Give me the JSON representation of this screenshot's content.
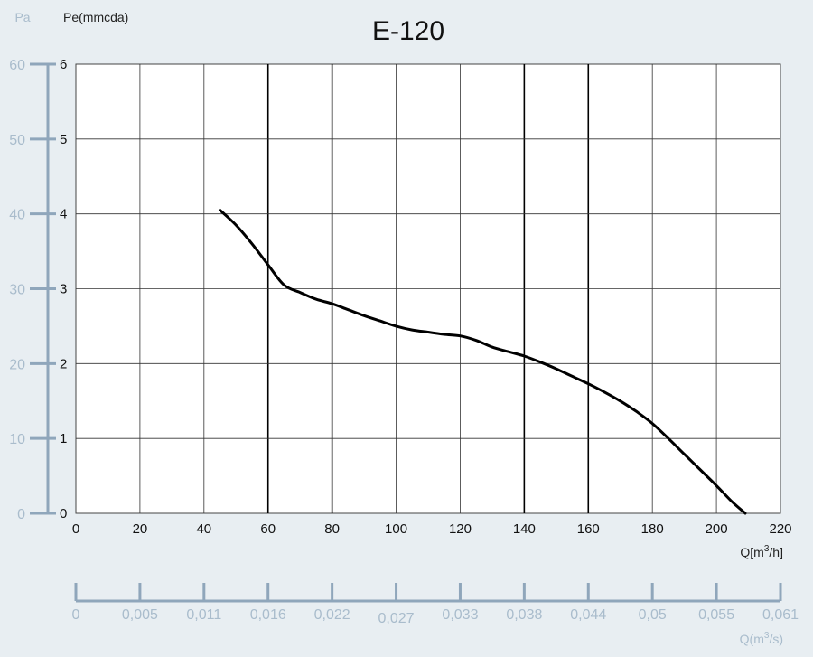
{
  "chart_data": {
    "type": "line",
    "title": "E-120",
    "left_axis_unit": "Pa",
    "ylabel": "Pe(mmcda)",
    "xlabel_main": "Q",
    "xlabel_unit_pre": "[m",
    "xlabel_unit_sup": "3",
    "xlabel_unit_post": "/h]",
    "xlabel_secondary_main": "Q",
    "xlabel_secondary_unit_pre": "(m",
    "xlabel_secondary_unit_sup": "3",
    "xlabel_secondary_unit_post": "/s)",
    "xlim": [
      0,
      220
    ],
    "ylim": [
      0,
      6
    ],
    "x_ticks": [
      "0",
      "20",
      "40",
      "60",
      "80",
      "100",
      "120",
      "140",
      "160",
      "180",
      "200",
      "220"
    ],
    "y_ticks": [
      "0",
      "1",
      "2",
      "3",
      "4",
      "5",
      "6"
    ],
    "pa_ticks": [
      "0",
      "10",
      "20",
      "30",
      "40",
      "50",
      "60"
    ],
    "secondary_x_ticks": [
      "0",
      "0,005",
      "0,011",
      "0,016",
      "0,022",
      "0,027",
      "0,033",
      "0,038",
      "0,044",
      "0,05",
      "0,055",
      "0,061"
    ],
    "grid": true,
    "series": [
      {
        "x": [
          45,
          50,
          55,
          60,
          65,
          70,
          75,
          80,
          85,
          90,
          95,
          100,
          105,
          110,
          115,
          120,
          125,
          130,
          135,
          140,
          145,
          150,
          155,
          160,
          165,
          170,
          175,
          180,
          185,
          190,
          195,
          200,
          205,
          209
        ],
        "y": [
          4.05,
          3.85,
          3.6,
          3.32,
          3.05,
          2.95,
          2.86,
          2.8,
          2.72,
          2.64,
          2.57,
          2.5,
          2.45,
          2.42,
          2.39,
          2.37,
          2.31,
          2.22,
          2.16,
          2.1,
          2.02,
          1.93,
          1.83,
          1.73,
          1.62,
          1.5,
          1.36,
          1.2,
          1.0,
          0.79,
          0.58,
          0.37,
          0.15,
          0.0
        ]
      }
    ]
  },
  "colors": {
    "background": "#e8eef2",
    "plot_background": "#ffffff",
    "curve": "#000000",
    "secondary_axis": "#8fa6bb",
    "secondary_text": "#a9bccc",
    "grid_thin": "#333333",
    "grid_bold": "#000000"
  }
}
